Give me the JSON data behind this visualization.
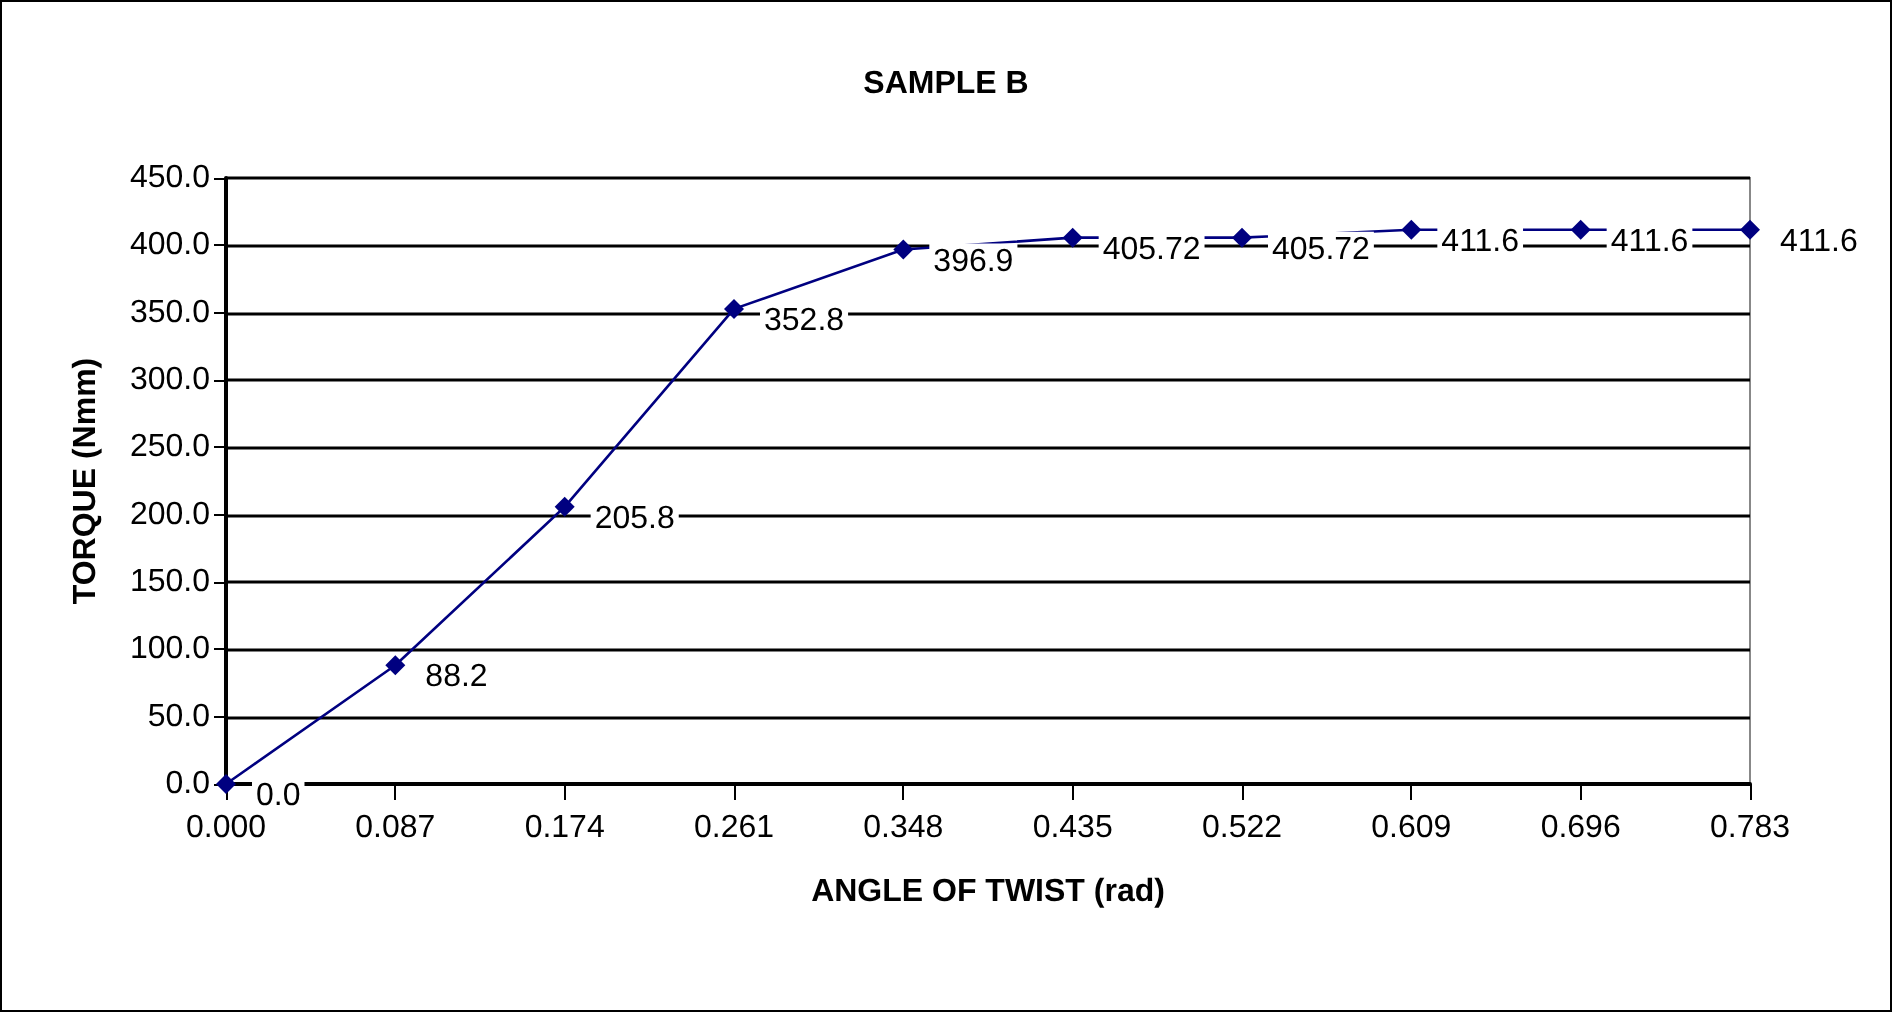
{
  "chart_data": {
    "type": "line",
    "title": "SAMPLE B",
    "xlabel": "ANGLE OF TWIST (rad)",
    "ylabel": "TORQUE (Nmm)",
    "categories": [
      "0.000",
      "0.087",
      "0.174",
      "0.261",
      "0.348",
      "0.435",
      "0.522",
      "0.609",
      "0.696",
      "0.783"
    ],
    "series": [
      {
        "color": "#000080",
        "values": [
          0,
          88.2,
          205.8,
          352.8,
          396.9,
          405.72,
          405.72,
          411.6,
          411.6,
          411.6
        ],
        "value_labels": [
          "0.0",
          "88.2",
          "205.8",
          "352.8",
          "396.9",
          "405.72",
          "405.72",
          "411.6",
          "411.6",
          "411.6"
        ]
      }
    ],
    "ylim": [
      0,
      450
    ],
    "yticks": [
      {
        "value": 0,
        "label": "0.0"
      },
      {
        "value": 50,
        "label": "50.0"
      },
      {
        "value": 100,
        "label": "100.0"
      },
      {
        "value": 150,
        "label": "150.0"
      },
      {
        "value": 200,
        "label": "200.0"
      },
      {
        "value": 250,
        "label": "250.0"
      },
      {
        "value": 300,
        "label": "300.0"
      },
      {
        "value": 350,
        "label": "350.0"
      },
      {
        "value": 400,
        "label": "400.0"
      },
      {
        "value": 450,
        "label": "450.0"
      }
    ],
    "grid": "y",
    "marker": "diamond",
    "line_style": "solid"
  }
}
